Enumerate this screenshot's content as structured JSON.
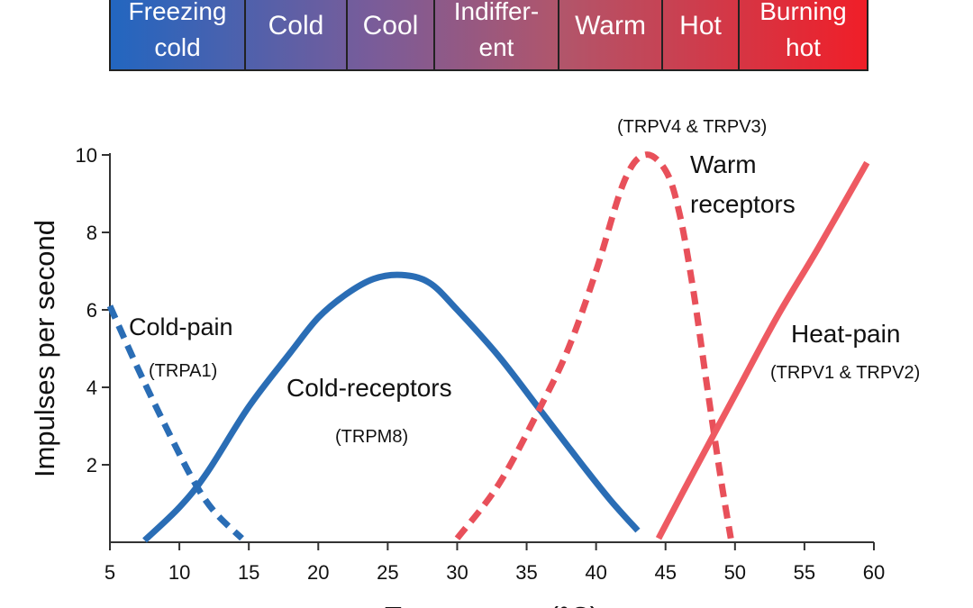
{
  "temperature_bar": {
    "segments": [
      {
        "line1": "Freezing",
        "line2": "cold",
        "color": "#2f6db8"
      },
      {
        "line1": "Cold",
        "line2": "",
        "color": "#6a5ea6"
      },
      {
        "line1": "Cool",
        "line2": "",
        "color": "#8a5a8f"
      },
      {
        "line1": "Indiffer-",
        "line2": "ent",
        "color": "#a85670"
      },
      {
        "line1": "Warm",
        "line2": "",
        "color": "#c7525e"
      },
      {
        "line1": "Hot",
        "line2": "",
        "color": "#d84450"
      },
      {
        "line1": "Burning",
        "line2": "hot",
        "color": "#ee1f2e"
      }
    ],
    "gradient_start": "#2266c0",
    "gradient_end": "#f01e28"
  },
  "chart_data": {
    "type": "line",
    "xlabel": "Temperature (°C)",
    "ylabel": "Impulses per second",
    "xlim": [
      5,
      60
    ],
    "ylim": [
      0,
      10
    ],
    "x_ticks": [
      "5",
      "10",
      "15",
      "20",
      "25",
      "30",
      "35",
      "40",
      "45",
      "50",
      "55",
      "60"
    ],
    "y_ticks": [
      "2",
      "4",
      "6",
      "8",
      "10"
    ],
    "grid": false,
    "series": [
      {
        "name": "Cold-pain",
        "receptor": "(TRPA1)",
        "color": "#2a6db5",
        "style": "dashed",
        "x": [
          5,
          7,
          9,
          11,
          12.5,
          14.5
        ],
        "y": [
          6.1,
          4.5,
          3.0,
          1.6,
          0.8,
          0.1
        ]
      },
      {
        "name": "Cold-receptors",
        "receptor": "(TRPM8)",
        "color": "#2a6db5",
        "style": "solid",
        "x": [
          7.5,
          10,
          12,
          15,
          18,
          20,
          22,
          24,
          26,
          28,
          30,
          33,
          36,
          39,
          41,
          43
        ],
        "y": [
          0.05,
          0.9,
          1.8,
          3.5,
          4.9,
          5.8,
          6.4,
          6.8,
          6.9,
          6.7,
          6.0,
          4.8,
          3.4,
          2.0,
          1.1,
          0.3
        ]
      },
      {
        "name": "Warm receptors",
        "receptor": "(TRPV4 & TRPV3)",
        "color": "#e8505a",
        "style": "dashed",
        "x": [
          30,
          33,
          36,
          38,
          40,
          42,
          43.5,
          45,
          46,
          47,
          48,
          49,
          49.7
        ],
        "y": [
          0.1,
          1.5,
          3.5,
          5.0,
          7.0,
          9.3,
          10.0,
          9.6,
          8.5,
          6.5,
          4.0,
          1.6,
          0.1
        ]
      },
      {
        "name": "Heat-pain",
        "receptor": "(TRPV1 & TRPV2)",
        "color": "#ee5a62",
        "style": "solid",
        "x": [
          44.5,
          47,
          50,
          53,
          56,
          59.5
        ],
        "y": [
          0.1,
          1.8,
          3.8,
          5.8,
          7.6,
          9.8
        ]
      }
    ]
  }
}
